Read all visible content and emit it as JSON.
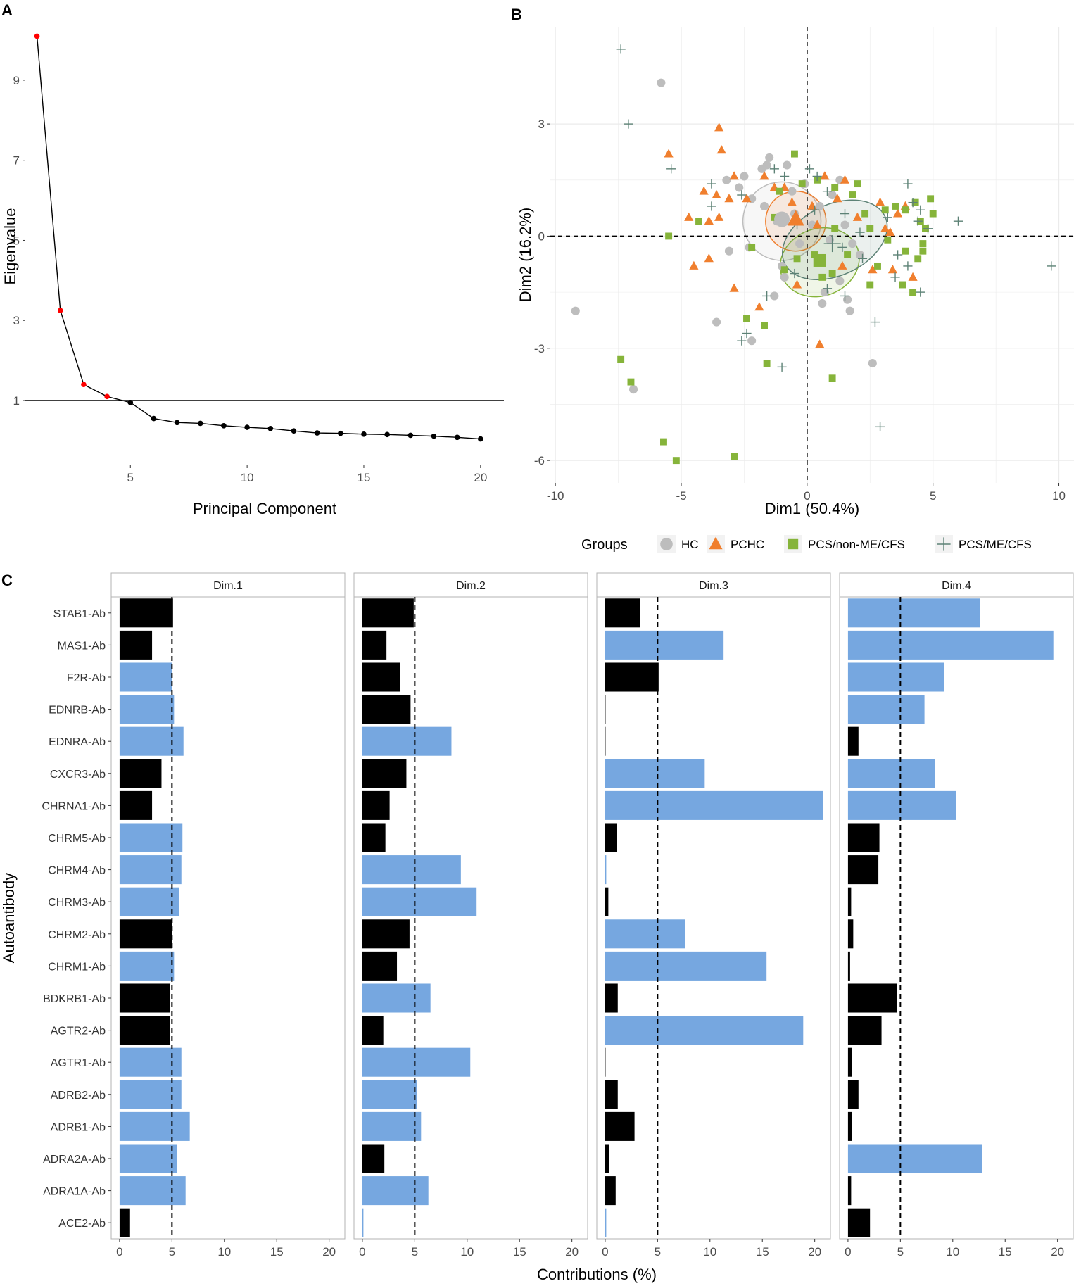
{
  "panels": {
    "a": "A",
    "b": "B",
    "c": "C"
  },
  "colors": {
    "hc": "#bdbdbd",
    "pchc": "#f07f2e",
    "nonme": "#86b43a",
    "me": "#5d8276",
    "blue": "#76a7e0",
    "black": "#000000",
    "red": "#ff0000",
    "grid": "#ebebeb"
  },
  "chart_data": [
    {
      "id": "scree",
      "type": "line",
      "title": "",
      "xlabel": "Principal Component",
      "ylabel": "Eigenvalue",
      "xlim": [
        0.5,
        21
      ],
      "ylim": [
        -0.6,
        10.3
      ],
      "x_ticks": [
        5,
        10,
        15,
        20
      ],
      "y_ticks": [
        1,
        3,
        5,
        7,
        9
      ],
      "reference_line": 1,
      "x": [
        1,
        2,
        3,
        4,
        5,
        6,
        7,
        8,
        9,
        10,
        11,
        12,
        13,
        14,
        15,
        16,
        17,
        18,
        19,
        20
      ],
      "values": [
        10.1,
        3.25,
        1.4,
        1.1,
        0.95,
        0.55,
        0.45,
        0.43,
        0.37,
        0.33,
        0.3,
        0.24,
        0.19,
        0.18,
        0.16,
        0.15,
        0.13,
        0.11,
        0.08,
        0.04
      ],
      "highlighted_points": 4
    },
    {
      "id": "pca",
      "type": "scatter",
      "xlabel": "Dim1 (50.4%)",
      "ylabel": "Dim2 (16.2%)",
      "xlim": [
        -10.2,
        10.6
      ],
      "ylim": [
        -6.6,
        5.6
      ],
      "x_ticks": [
        -10,
        -5,
        0,
        5,
        10
      ],
      "y_ticks": [
        -6,
        -3,
        0,
        3
      ],
      "legend_title": "Groups",
      "legend_position": "bottom",
      "series": [
        {
          "name": "HC",
          "shape": "circle",
          "color_key": "hc",
          "points": [
            [
              -5.8,
              4.1
            ],
            [
              -9.2,
              -2
            ],
            [
              -6.9,
              -4.1
            ],
            [
              -3.6,
              -2.3
            ],
            [
              -2.5,
              1.6
            ],
            [
              -1.8,
              1.8
            ],
            [
              -1.5,
              2.1
            ],
            [
              -0.8,
              1.9
            ],
            [
              -2.2,
              1
            ],
            [
              -2.7,
              1.3
            ],
            [
              -1.2,
              0.4
            ],
            [
              -0.6,
              1.2
            ],
            [
              -3.2,
              1.5
            ],
            [
              -1.7,
              0.8
            ],
            [
              -2.3,
              -0.3
            ],
            [
              -3.1,
              -0.4
            ],
            [
              -0.3,
              -0.2
            ],
            [
              0.5,
              0.8
            ],
            [
              1,
              1.1
            ],
            [
              1.3,
              1.5
            ],
            [
              1.5,
              0.3
            ],
            [
              2.1,
              -0.5
            ],
            [
              1.8,
              -0.2
            ],
            [
              -0.9,
              -1.1
            ],
            [
              -1.3,
              -1.6
            ],
            [
              0.6,
              -1.8
            ],
            [
              1.6,
              -1.7
            ],
            [
              1.3,
              -1.2
            ],
            [
              -2.2,
              -2.8
            ],
            [
              2.6,
              -3.4
            ],
            [
              -0.5,
              0.6
            ],
            [
              0.2,
              0.3
            ],
            [
              -1.6,
              1.9
            ],
            [
              0.7,
              -1.5
            ],
            [
              1.7,
              -2
            ],
            [
              -1,
              -0.8
            ],
            [
              0.9,
              -0.1
            ],
            [
              -0.1,
              1.4
            ]
          ]
        },
        {
          "name": "PCHC",
          "shape": "triangle",
          "color_key": "pchc",
          "points": [
            [
              -3.5,
              2.9
            ],
            [
              -5.5,
              2.2
            ],
            [
              -3.4,
              2.3
            ],
            [
              -4.1,
              1.2
            ],
            [
              -3.6,
              1.1
            ],
            [
              -3.1,
              1
            ],
            [
              -4.7,
              0.5
            ],
            [
              -3.9,
              0.4
            ],
            [
              -2.9,
              1.6
            ],
            [
              -2.4,
              1
            ],
            [
              -1.7,
              1.6
            ],
            [
              -1.3,
              1.3
            ],
            [
              -4.5,
              -0.8
            ],
            [
              -3.9,
              -0.6
            ],
            [
              -2.9,
              -1.4
            ],
            [
              -1.9,
              -1.9
            ],
            [
              -0.9,
              1.3
            ],
            [
              -0.6,
              0.9
            ],
            [
              0.2,
              0.8
            ],
            [
              0.7,
              1.6
            ],
            [
              0.4,
              0.3
            ],
            [
              1.2,
              1
            ],
            [
              2,
              0.5
            ],
            [
              3.1,
              0.2
            ],
            [
              3.6,
              0.6
            ],
            [
              3.3,
              0.1
            ],
            [
              3.9,
              0.8
            ],
            [
              3.4,
              -0.9
            ],
            [
              2.6,
              -0.9
            ],
            [
              4.2,
              -1.1
            ],
            [
              1.4,
              -0.8
            ],
            [
              0.5,
              -2.9
            ],
            [
              -3.5,
              0.5
            ],
            [
              1.5,
              1.5
            ],
            [
              -0.4,
              -1.3
            ],
            [
              2.9,
              0.9
            ]
          ]
        },
        {
          "name": "PCS/non-ME/CFS",
          "shape": "square",
          "color_key": "nonme",
          "points": [
            [
              -0.5,
              2.2
            ],
            [
              -1.1,
              1.2
            ],
            [
              -0.2,
              1.4
            ],
            [
              0.4,
              1.5
            ],
            [
              1.1,
              1.3
            ],
            [
              1.8,
              1.1
            ],
            [
              2,
              1.4
            ],
            [
              2.3,
              0.6
            ],
            [
              2.5,
              0.2
            ],
            [
              3.1,
              0.7
            ],
            [
              3.5,
              0.8
            ],
            [
              3.9,
              0.7
            ],
            [
              4.3,
              0.9
            ],
            [
              4.5,
              0.4
            ],
            [
              4.7,
              0.2
            ],
            [
              4.9,
              1
            ],
            [
              5,
              0.6
            ],
            [
              4.6,
              -0.2
            ],
            [
              4.6,
              -0.4
            ],
            [
              4.4,
              -0.6
            ],
            [
              3.9,
              -0.4
            ],
            [
              3.2,
              -0.1
            ],
            [
              2.8,
              -0.8
            ],
            [
              2.5,
              -1.3
            ],
            [
              3.8,
              -1.3
            ],
            [
              4.2,
              -1.5
            ],
            [
              1.6,
              -0.5
            ],
            [
              1,
              -1
            ],
            [
              0.6,
              -1.1
            ],
            [
              -0.4,
              -0.6
            ],
            [
              -0.9,
              -0.9
            ],
            [
              -2.4,
              -2.2
            ],
            [
              -1.7,
              -2.4
            ],
            [
              -1.6,
              -3.4
            ],
            [
              1,
              -3.8
            ],
            [
              -7.4,
              -3.3
            ],
            [
              -7,
              -3.9
            ],
            [
              -5.7,
              -5.5
            ],
            [
              -5.2,
              -6
            ],
            [
              -2.9,
              -5.9
            ],
            [
              -5.5,
              0
            ],
            [
              -4.3,
              0.4
            ],
            [
              -2.2,
              -0.3
            ],
            [
              0.3,
              -0.5
            ],
            [
              1.1,
              0.2
            ],
            [
              -1.3,
              0.5
            ]
          ]
        },
        {
          "name": "PCS/ME/CFS",
          "shape": "plus",
          "color_key": "me",
          "points": [
            [
              -7.4,
              5
            ],
            [
              -7.1,
              3
            ],
            [
              -5.4,
              1.8
            ],
            [
              -3.8,
              1.4
            ],
            [
              -2.6,
              1.1
            ],
            [
              -1.3,
              1.8
            ],
            [
              -0.9,
              1.6
            ],
            [
              0.1,
              1.8
            ],
            [
              0.4,
              1.6
            ],
            [
              0.8,
              1.2
            ],
            [
              1.5,
              0.6
            ],
            [
              3.2,
              0.5
            ],
            [
              4,
              1.4
            ],
            [
              4.2,
              0.9
            ],
            [
              4.4,
              0.4
            ],
            [
              4.8,
              0.2
            ],
            [
              6,
              0.4
            ],
            [
              9.7,
              -0.8
            ],
            [
              4.5,
              -1.5
            ],
            [
              4,
              -0.8
            ],
            [
              3.6,
              -0.5
            ],
            [
              3.5,
              -1.1
            ],
            [
              2.2,
              -0.6
            ],
            [
              1.5,
              -1.6
            ],
            [
              0.8,
              -1.4
            ],
            [
              -0.5,
              -1
            ],
            [
              -1.6,
              -1.6
            ],
            [
              -2.4,
              -2.6
            ],
            [
              -2.6,
              -2.8
            ],
            [
              -1,
              -3.5
            ],
            [
              2.7,
              -2.3
            ],
            [
              2.9,
              -5.1
            ],
            [
              -3.8,
              0.8
            ],
            [
              0.3,
              0.7
            ],
            [
              -0.4,
              0.3
            ],
            [
              1.4,
              -0.3
            ],
            [
              2.1,
              0.1
            ],
            [
              4.5,
              0.7
            ]
          ]
        }
      ],
      "means": [
        {
          "name": "HC",
          "x": -1.0,
          "y": 0.45
        },
        {
          "name": "PCHC",
          "x": -0.45,
          "y": 0.45
        },
        {
          "name": "PCS/non-ME/CFS",
          "x": 0.5,
          "y": -0.65
        },
        {
          "name": "PCS/ME/CFS",
          "x": 1.0,
          "y": -0.2
        }
      ],
      "ellipses": [
        {
          "name": "HC",
          "cx": -1.0,
          "cy": 0.4,
          "rx": 1.55,
          "ry": 1.05,
          "rot": 0
        },
        {
          "name": "PCHC",
          "cx": -0.45,
          "cy": 0.4,
          "rx": 1.2,
          "ry": 0.8,
          "rot": -10
        },
        {
          "name": "PCS/non-ME/CFS",
          "cx": 0.5,
          "cy": -0.7,
          "rx": 1.6,
          "ry": 0.9,
          "rot": -20
        },
        {
          "name": "PCS/ME/CFS",
          "cx": 1.1,
          "cy": -0.1,
          "rx": 2.2,
          "ry": 0.95,
          "rot": -25
        }
      ]
    },
    {
      "id": "contributions",
      "type": "bar",
      "orientation": "horizontal",
      "xlabel": "Contributions (%)",
      "ylabel": "Autoantibody",
      "xlim": [
        -0.8,
        21.5
      ],
      "x_ticks": [
        0,
        5,
        10,
        15,
        20
      ],
      "reference_line": 5,
      "categories": [
        "STAB1-Ab",
        "MAS1-Ab",
        "F2R-Ab",
        "EDNRB-Ab",
        "EDNRA-Ab",
        "CXCR3-Ab",
        "CHRNA1-Ab",
        "CHRM5-Ab",
        "CHRM4-Ab",
        "CHRM3-Ab",
        "CHRM2-Ab",
        "CHRM1-Ab",
        "BDKRB1-Ab",
        "AGTR2-Ab",
        "AGTR1-Ab",
        "ADRB2-Ab",
        "ADRB1-Ab",
        "ADRA2A-Ab",
        "ADRA1A-Ab",
        "ACE2-Ab"
      ],
      "series": [
        {
          "name": "Dim.1",
          "values": [
            5.1,
            3.1,
            5.0,
            5.2,
            6.1,
            4.0,
            3.1,
            6.0,
            5.9,
            5.7,
            5.0,
            5.2,
            4.8,
            4.8,
            5.9,
            5.9,
            6.7,
            5.5,
            6.3,
            1.0
          ],
          "highlight": [
            "black",
            "black",
            "blue",
            "blue",
            "blue",
            "black",
            "black",
            "blue",
            "blue",
            "blue",
            "black",
            "blue",
            "black",
            "black",
            "blue",
            "blue",
            "blue",
            "blue",
            "blue",
            "black"
          ]
        },
        {
          "name": "Dim.2",
          "values": [
            4.9,
            2.3,
            3.6,
            4.6,
            8.5,
            4.2,
            2.6,
            2.2,
            9.4,
            10.9,
            4.5,
            3.3,
            6.5,
            2.0,
            10.3,
            5.2,
            5.6,
            2.1,
            6.3,
            0.1
          ],
          "highlight": [
            "black",
            "black",
            "black",
            "black",
            "blue",
            "black",
            "black",
            "black",
            "blue",
            "blue",
            "black",
            "black",
            "blue",
            "black",
            "blue",
            "blue",
            "blue",
            "black",
            "blue",
            "blue"
          ]
        },
        {
          "name": "Dim.3",
          "values": [
            3.3,
            11.3,
            5.1,
            0.0,
            0.0,
            9.5,
            20.8,
            1.1,
            0.1,
            0.3,
            7.6,
            15.4,
            1.2,
            18.9,
            0.0,
            1.2,
            2.8,
            0.4,
            1.0,
            0.1
          ],
          "highlight": [
            "black",
            "blue",
            "black",
            "black",
            "black",
            "blue",
            "blue",
            "black",
            "blue",
            "black",
            "blue",
            "blue",
            "black",
            "blue",
            "black",
            "black",
            "black",
            "black",
            "black",
            "blue"
          ]
        },
        {
          "name": "Dim.4",
          "values": [
            12.6,
            19.6,
            9.2,
            7.3,
            1.0,
            8.3,
            10.3,
            3.0,
            2.9,
            0.3,
            0.5,
            0.2,
            4.7,
            3.2,
            0.4,
            1.0,
            0.4,
            12.8,
            0.3,
            2.1
          ],
          "highlight": [
            "blue",
            "blue",
            "blue",
            "blue",
            "black",
            "blue",
            "blue",
            "black",
            "black",
            "black",
            "black",
            "black",
            "black",
            "black",
            "black",
            "black",
            "black",
            "blue",
            "black",
            "black"
          ]
        }
      ]
    }
  ]
}
